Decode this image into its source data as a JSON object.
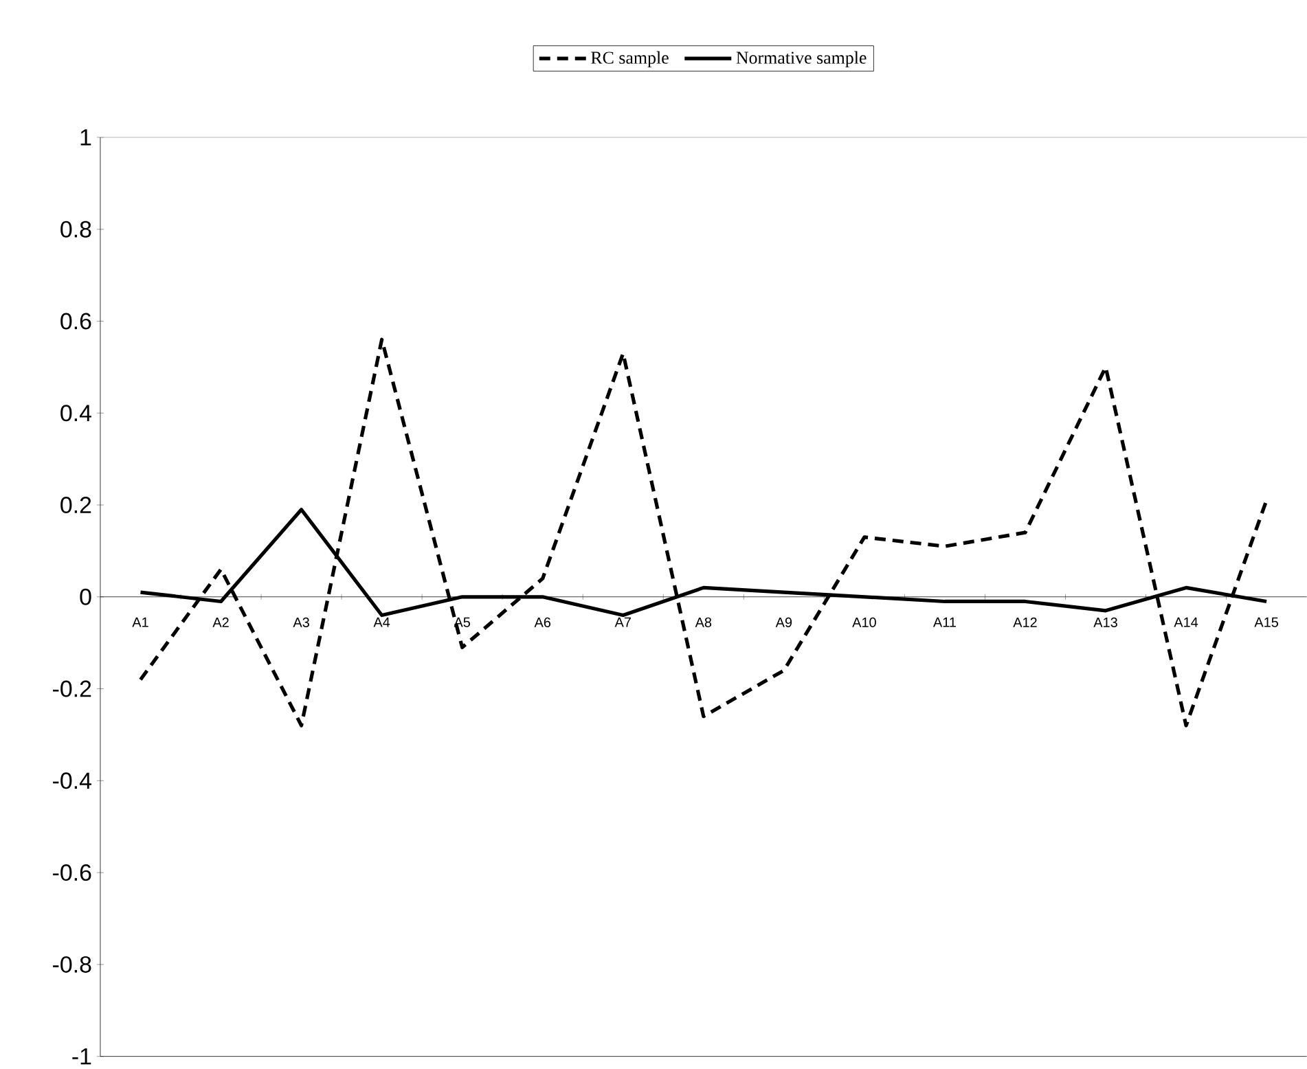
{
  "chart_data": {
    "type": "line",
    "categories": [
      "A1",
      "A2",
      "A3",
      "A4",
      "A5",
      "A6",
      "A7",
      "A8",
      "A9",
      "A10",
      "A11",
      "A12",
      "A13",
      "A14",
      "A15"
    ],
    "series": [
      {
        "name": "RC sample",
        "color": "#000000",
        "line_style": "dashed",
        "values": [
          -0.18,
          0.06,
          -0.28,
          0.56,
          -0.11,
          0.04,
          0.53,
          -0.26,
          -0.16,
          0.13,
          0.11,
          0.14,
          0.5,
          -0.28,
          0.21
        ]
      },
      {
        "name": "Normative sample",
        "color": "#000000",
        "line_style": "solid",
        "values": [
          0.01,
          -0.01,
          0.19,
          -0.04,
          0,
          0,
          -0.04,
          0.02,
          0.01,
          0,
          -0.01,
          -0.01,
          -0.03,
          0.02,
          -0.01
        ]
      }
    ],
    "ylim": [
      -1,
      1
    ],
    "yticks": [
      -1,
      -0.8,
      -0.6,
      -0.4,
      -0.2,
      0,
      0.2,
      0.4,
      0.6,
      0.8,
      1
    ],
    "legend": "top",
    "grid": false,
    "marker": "none"
  }
}
